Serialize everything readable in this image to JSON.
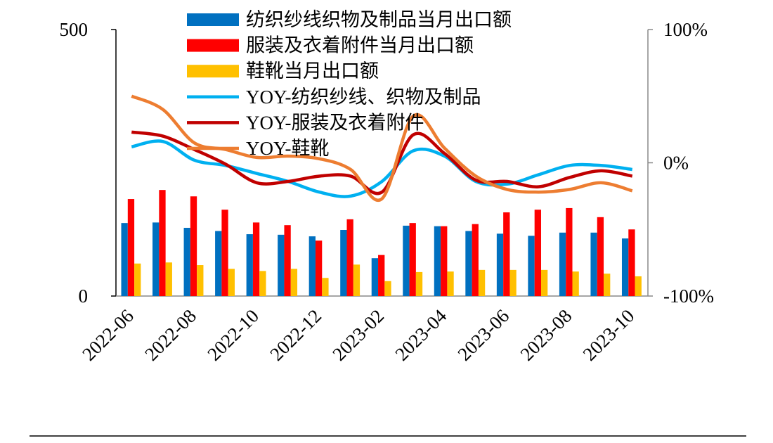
{
  "chart_data": {
    "type": "bar",
    "categories": [
      "2022-06",
      null,
      "2022-08",
      null,
      "2022-10",
      null,
      "2022-12",
      null,
      "2023-02",
      null,
      "2023-04",
      null,
      "2023-06",
      null,
      "2023-08",
      null,
      "2023-10"
    ],
    "ylim": [
      0,
      500
    ],
    "yticks": [
      0,
      500
    ],
    "y2lim": [
      -100,
      100
    ],
    "y2ticks": [
      {
        "value": -100,
        "label": "-100%"
      },
      {
        "value": 0,
        "label": "0%"
      },
      {
        "value": 100,
        "label": "100%"
      }
    ],
    "series": [
      {
        "name": "纺织纱线织物及制品当月出口额",
        "type": "bar",
        "color": "#0070c0",
        "values": [
          137,
          138,
          128,
          122,
          116,
          115,
          112,
          124,
          71,
          132,
          131,
          122,
          117,
          113,
          119,
          119,
          108
        ]
      },
      {
        "name": "服装及衣着附件当月出口额",
        "type": "bar",
        "color": "#ff0000",
        "values": [
          182,
          199,
          187,
          162,
          138,
          133,
          104,
          144,
          77,
          137,
          131,
          135,
          157,
          162,
          165,
          148,
          125
        ]
      },
      {
        "name": "鞋靴当月出口额",
        "type": "bar",
        "color": "#ffc000",
        "values": [
          61,
          63,
          58,
          51,
          47,
          51,
          34,
          59,
          28,
          45,
          46,
          49,
          49,
          49,
          46,
          42,
          37
        ]
      },
      {
        "name": "YOY-纺织纱线、织物及制品",
        "type": "line",
        "axis": "y2",
        "color": "#00b0f0",
        "values": [
          12,
          16,
          2,
          -2,
          -8,
          -14,
          -22,
          -25,
          -14,
          9,
          5,
          -14,
          -16,
          -9,
          -2,
          -2,
          -5
        ]
      },
      {
        "name": "YOY-服装及衣着附件",
        "type": "line",
        "axis": "y2",
        "color": "#c00000",
        "values": [
          23,
          20,
          10,
          -1,
          -15,
          -14,
          -10,
          -10,
          -22,
          21,
          7,
          -13,
          -14,
          -18,
          -11,
          -6,
          -10
        ]
      },
      {
        "name": "YOY-鞋靴",
        "type": "line",
        "axis": "y2",
        "color": "#ed7d31",
        "values": [
          50,
          40,
          15,
          10,
          4,
          5,
          3,
          -5,
          -27,
          35,
          11,
          -10,
          -20,
          -22,
          -20,
          -15,
          -21
        ]
      }
    ]
  }
}
